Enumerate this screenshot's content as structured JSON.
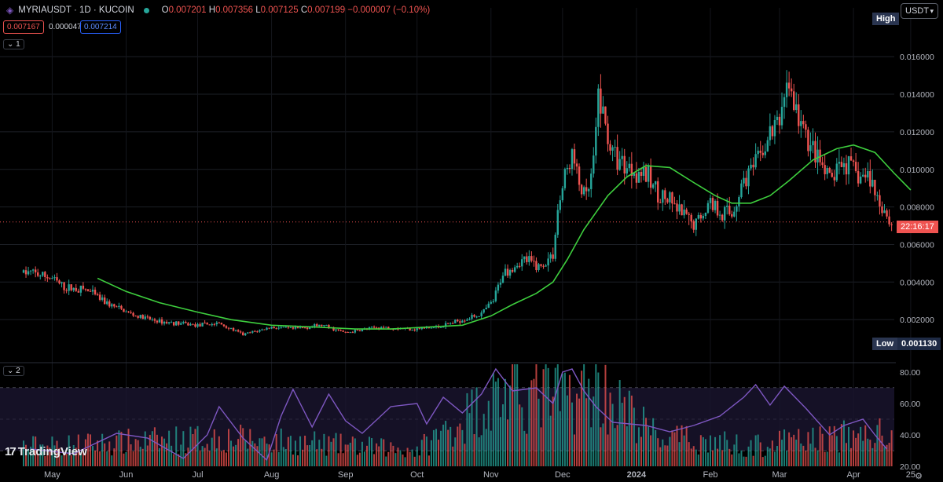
{
  "header": {
    "symbol": "MYRIAUSDT · 1D · KUCOIN",
    "ohlc": {
      "o_label": "O",
      "o": "0.007201",
      "h_label": "H",
      "h": "0.007356",
      "l_label": "L",
      "l": "0.007125",
      "c_label": "C",
      "c": "0.007199",
      "change": "−0.000007 (−0.10%)"
    },
    "bid": "0.007167",
    "spread": "0.000047",
    "ask": "0.007214"
  },
  "panes": {
    "main_label": "1",
    "indicator_label": "2"
  },
  "currency": "USDT",
  "badges": {
    "high": "High",
    "low": "Low",
    "low_value": "0.001130",
    "countdown": "22:16:17"
  },
  "branding": "TradingView",
  "colors": {
    "up": "#26a69a",
    "down": "#ef5350",
    "ma": "#3ecf3e",
    "rsi": "#7e57c2",
    "bid": "#ef5350",
    "ask": "#2962ff",
    "background": "#000000"
  },
  "chart_data": [
    {
      "type": "candlestick",
      "title": "MYRIAUSDT · 1D · KUCOIN",
      "y_ticks": [
        "0.002000",
        "0.004000",
        "0.006000",
        "0.008000",
        "0.010000",
        "0.012000",
        "0.014000",
        "0.016000"
      ],
      "x_ticks": [
        "May",
        "Jun",
        "Jul",
        "Aug",
        "Sep",
        "Oct",
        "Nov",
        "Dec",
        "2024",
        "Feb",
        "Mar",
        "Apr",
        "25"
      ],
      "ylim": [
        0.0,
        0.0186
      ],
      "current_price": 0.007199,
      "low": 0.00113,
      "close_path": [
        [
          "2023-04-22",
          0.0045
        ],
        [
          "2023-05-01",
          0.0042
        ],
        [
          "2023-05-06",
          0.0037
        ],
        [
          "2023-05-15",
          0.0036
        ],
        [
          "2023-05-25",
          0.0028
        ],
        [
          "2023-06-05",
          0.0022
        ],
        [
          "2023-06-15",
          0.0019
        ],
        [
          "2023-07-01",
          0.0017
        ],
        [
          "2023-07-10",
          0.0018
        ],
        [
          "2023-07-20",
          0.0012
        ],
        [
          "2023-08-01",
          0.0016
        ],
        [
          "2023-08-10",
          0.0015
        ],
        [
          "2023-08-22",
          0.0017
        ],
        [
          "2023-09-01",
          0.0013
        ],
        [
          "2023-09-15",
          0.0016
        ],
        [
          "2023-10-01",
          0.0015
        ],
        [
          "2023-10-10",
          0.0016
        ],
        [
          "2023-10-20",
          0.002
        ],
        [
          "2023-10-28",
          0.0023
        ],
        [
          "2023-11-02",
          0.003
        ],
        [
          "2023-11-06",
          0.0045
        ],
        [
          "2023-11-15",
          0.0052
        ],
        [
          "2023-11-22",
          0.0048
        ],
        [
          "2023-11-27",
          0.0055
        ],
        [
          "2023-11-29",
          0.0078
        ],
        [
          "2023-12-02",
          0.0096
        ],
        [
          "2023-12-05",
          0.0108
        ],
        [
          "2023-12-08",
          0.0092
        ],
        [
          "2023-12-11",
          0.0084
        ],
        [
          "2023-12-13",
          0.0095
        ],
        [
          "2023-12-15",
          0.0115
        ],
        [
          "2023-12-16",
          0.0142
        ],
        [
          "2023-12-18",
          0.0128
        ],
        [
          "2023-12-22",
          0.0108
        ],
        [
          "2023-12-28",
          0.0102
        ],
        [
          "2024-01-04",
          0.0098
        ],
        [
          "2024-01-10",
          0.0088
        ],
        [
          "2024-01-15",
          0.0082
        ],
        [
          "2024-01-20",
          0.0076
        ],
        [
          "2024-01-25",
          0.007
        ],
        [
          "2024-02-01",
          0.0083
        ],
        [
          "2024-02-05",
          0.0078
        ],
        [
          "2024-02-10",
          0.0076
        ],
        [
          "2024-02-15",
          0.0095
        ],
        [
          "2024-02-20",
          0.0102
        ],
        [
          "2024-02-26",
          0.0118
        ],
        [
          "2024-03-01",
          0.0126
        ],
        [
          "2024-03-04",
          0.0148
        ],
        [
          "2024-03-08",
          0.013
        ],
        [
          "2024-03-12",
          0.0118
        ],
        [
          "2024-03-18",
          0.0102
        ],
        [
          "2024-03-22",
          0.0094
        ],
        [
          "2024-03-28",
          0.0104
        ],
        [
          "2024-04-03",
          0.0096
        ],
        [
          "2024-04-08",
          0.0096
        ],
        [
          "2024-04-10",
          0.0088
        ],
        [
          "2024-04-15",
          0.0076
        ],
        [
          "2024-04-19",
          0.0064
        ],
        [
          "2024-04-22",
          0.0066
        ],
        [
          "2024-04-26",
          0.0072
        ]
      ],
      "ma_path": [
        [
          "2023-05-20",
          0.0042
        ],
        [
          "2023-06-01",
          0.0035
        ],
        [
          "2023-06-15",
          0.0029
        ],
        [
          "2023-07-01",
          0.0024
        ],
        [
          "2023-07-15",
          0.002
        ],
        [
          "2023-08-01",
          0.0017
        ],
        [
          "2023-08-20",
          0.0016
        ],
        [
          "2023-09-05",
          0.0015
        ],
        [
          "2023-09-20",
          0.0015
        ],
        [
          "2023-10-05",
          0.0016
        ],
        [
          "2023-10-20",
          0.0017
        ],
        [
          "2023-11-01",
          0.0022
        ],
        [
          "2023-11-10",
          0.0028
        ],
        [
          "2023-11-20",
          0.0034
        ],
        [
          "2023-11-27",
          0.004
        ],
        [
          "2023-12-03",
          0.0052
        ],
        [
          "2023-12-10",
          0.0068
        ],
        [
          "2023-12-20",
          0.0086
        ],
        [
          "2023-12-28",
          0.0096
        ],
        [
          "2024-01-05",
          0.0102
        ],
        [
          "2024-01-15",
          0.0101
        ],
        [
          "2024-01-25",
          0.0093
        ],
        [
          "2024-02-03",
          0.0086
        ],
        [
          "2024-02-10",
          0.0082
        ],
        [
          "2024-02-18",
          0.0082
        ],
        [
          "2024-02-26",
          0.0086
        ],
        [
          "2024-03-05",
          0.0094
        ],
        [
          "2024-03-15",
          0.0105
        ],
        [
          "2024-03-25",
          0.0111
        ],
        [
          "2024-04-01",
          0.0113
        ],
        [
          "2024-04-10",
          0.0109
        ],
        [
          "2024-04-18",
          0.0098
        ],
        [
          "2024-04-25",
          0.0089
        ]
      ]
    },
    {
      "type": "line",
      "series": [
        {
          "values": "rsi_path"
        }
      ],
      "y_ticks": [
        "20.00",
        "40.00",
        "60.00",
        "80.00"
      ],
      "ylim": [
        20,
        86
      ],
      "bands": [
        30,
        50,
        70
      ],
      "rsi_path": [
        [
          "2023-04-22",
          31
        ],
        [
          "2023-05-10",
          28
        ],
        [
          "2023-05-28",
          41
        ],
        [
          "2023-06-10",
          38
        ],
        [
          "2023-06-25",
          25
        ],
        [
          "2023-07-05",
          40
        ],
        [
          "2023-07-10",
          58
        ],
        [
          "2023-07-20",
          38
        ],
        [
          "2023-07-30",
          24
        ],
        [
          "2023-08-05",
          52
        ],
        [
          "2023-08-10",
          69
        ],
        [
          "2023-08-18",
          45
        ],
        [
          "2023-08-25",
          66
        ],
        [
          "2023-09-01",
          49
        ],
        [
          "2023-09-08",
          41
        ],
        [
          "2023-09-20",
          58
        ],
        [
          "2023-10-01",
          60
        ],
        [
          "2023-10-05",
          47
        ],
        [
          "2023-10-12",
          64
        ],
        [
          "2023-10-20",
          54
        ],
        [
          "2023-10-28",
          66
        ],
        [
          "2023-11-03",
          82
        ],
        [
          "2023-11-10",
          68
        ],
        [
          "2023-11-20",
          70
        ],
        [
          "2023-11-27",
          60
        ],
        [
          "2023-12-01",
          80
        ],
        [
          "2023-12-05",
          82
        ],
        [
          "2023-12-10",
          68
        ],
        [
          "2023-12-15",
          58
        ],
        [
          "2023-12-22",
          48
        ],
        [
          "2024-01-05",
          46
        ],
        [
          "2024-01-15",
          42
        ],
        [
          "2024-01-25",
          46
        ],
        [
          "2024-02-05",
          52
        ],
        [
          "2024-02-15",
          64
        ],
        [
          "2024-02-20",
          72
        ],
        [
          "2024-02-26",
          59
        ],
        [
          "2024-03-03",
          71
        ],
        [
          "2024-03-12",
          57
        ],
        [
          "2024-03-22",
          40
        ],
        [
          "2024-03-28",
          46
        ],
        [
          "2024-04-05",
          50
        ],
        [
          "2024-04-10",
          40
        ],
        [
          "2024-04-15",
          31
        ],
        [
          "2024-04-20",
          36
        ],
        [
          "2024-04-26",
          42
        ]
      ],
      "volume_path": [
        [
          "2023-05-01",
          0.25
        ],
        [
          "2023-07-10",
          0.35
        ],
        [
          "2023-10-01",
          0.2
        ],
        [
          "2023-11-05",
          0.9
        ],
        [
          "2023-12-01",
          0.85
        ],
        [
          "2023-12-16",
          0.95
        ],
        [
          "2024-01-10",
          0.35
        ],
        [
          "2024-02-20",
          0.25
        ],
        [
          "2024-03-05",
          0.3
        ],
        [
          "2024-04-10",
          0.4
        ],
        [
          "2024-04-26",
          0.3
        ]
      ]
    }
  ]
}
